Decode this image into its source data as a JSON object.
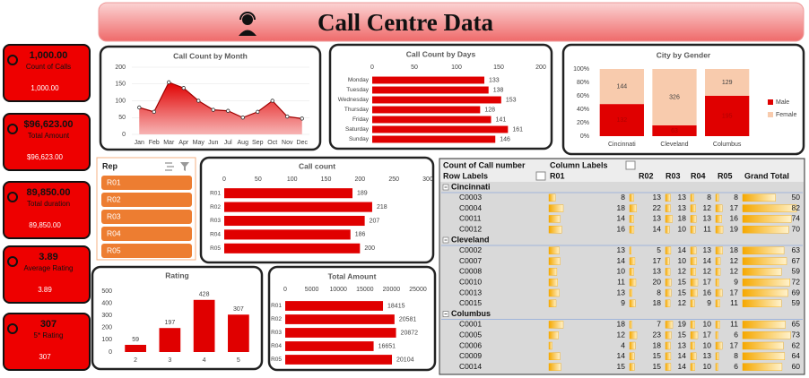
{
  "header": {
    "title": "Call Centre Data"
  },
  "kpis": [
    {
      "value": "1,000.00",
      "label": "Count of Calls"
    },
    {
      "value": "$96,623.00",
      "label": "Total Amount"
    },
    {
      "value": "89,850.00",
      "label": "Total duration"
    },
    {
      "value": "3.89",
      "label": "Average Rating"
    },
    {
      "value": "307",
      "label": "5* Rating"
    }
  ],
  "chart_data": [
    {
      "type": "area",
      "title": "Call Count by Month",
      "categories": [
        "Jan",
        "Feb",
        "Mar",
        "Apr",
        "May",
        "Jun",
        "Jul",
        "Aug",
        "Sep",
        "Oct",
        "Nov",
        "Dec"
      ],
      "values": [
        80,
        67,
        155,
        138,
        100,
        73,
        70,
        50,
        67,
        100,
        53,
        47
      ],
      "color": "#e00000",
      "ylim": [
        0,
        200
      ],
      "yticks": [
        0,
        50,
        100,
        150,
        200
      ],
      "grid": true
    },
    {
      "type": "bar",
      "orientation": "horizontal",
      "title": "Call Count by Days",
      "categories": [
        "Monday",
        "Tuesday",
        "Wednesday",
        "Thursday",
        "Friday",
        "Saturday",
        "Sunday"
      ],
      "values": [
        133,
        138,
        153,
        128,
        141,
        161,
        146
      ],
      "color": "#e00000",
      "xlim": [
        0,
        200
      ],
      "xticks": [
        0,
        50,
        100,
        150,
        200
      ],
      "grid": false
    },
    {
      "type": "bar",
      "stacked": "percent",
      "title": "City by Gender",
      "categories": [
        "Cincinnati",
        "Cleveland",
        "Columbus"
      ],
      "series": [
        {
          "name": "Male",
          "color": "#e00000",
          "values": [
            132,
            63,
            195
          ]
        },
        {
          "name": "Female",
          "color": "#f8cbad",
          "values": [
            144,
            326,
            129
          ]
        }
      ],
      "ylim": [
        0,
        100
      ],
      "yticks": [
        {
          "value": 0,
          "label": "0%"
        },
        {
          "value": 20,
          "label": "20%"
        },
        {
          "value": 40,
          "label": "40%"
        },
        {
          "value": 60,
          "label": "60%"
        },
        {
          "value": 80,
          "label": "80%"
        },
        {
          "value": 100,
          "label": "100%"
        }
      ],
      "legend": "right",
      "grid": false
    },
    {
      "type": "bar",
      "orientation": "horizontal",
      "title": "Call count",
      "categories": [
        "R01",
        "R02",
        "R03",
        "R04",
        "R05"
      ],
      "values": [
        189,
        218,
        207,
        186,
        200
      ],
      "color": "#e00000",
      "xlim": [
        0,
        300
      ],
      "xticks": [
        0,
        50,
        100,
        150,
        200,
        250,
        300
      ],
      "grid": false
    },
    {
      "type": "bar",
      "title": "Rating",
      "categories": [
        "2",
        "3",
        "4",
        "5"
      ],
      "values": [
        59,
        197,
        428,
        307
      ],
      "color": "#e00000",
      "ylim": [
        0,
        500
      ],
      "yticks": [
        0,
        100,
        200,
        300,
        400,
        500
      ],
      "grid": false
    },
    {
      "type": "bar",
      "orientation": "horizontal",
      "title": "Total Amount",
      "categories": [
        "R01",
        "R02",
        "R03",
        "R04",
        "R05"
      ],
      "values": [
        18415,
        20581,
        20872,
        16651,
        20104
      ],
      "color": "#e00000",
      "xlim": [
        0,
        25000
      ],
      "xticks": [
        0,
        5000,
        10000,
        15000,
        20000,
        25000
      ],
      "grid": false
    }
  ],
  "slicer": {
    "title": "Rep",
    "items": [
      "R01",
      "R02",
      "R03",
      "R04",
      "R05"
    ]
  },
  "pivot": {
    "corner": "Count of Call number",
    "column_labels": "Column Labels",
    "row_labels": "Row Labels",
    "columns": [
      "R01",
      "R02",
      "R03",
      "R04",
      "R05",
      "Grand Total"
    ],
    "groups": [
      {
        "name": "Cincinnati",
        "rows": [
          {
            "label": "C0003",
            "values": [
              8,
              13,
              13,
              8,
              8,
              50
            ]
          },
          {
            "label": "C0004",
            "values": [
              18,
              22,
              13,
              12,
              17,
              82
            ]
          },
          {
            "label": "C0011",
            "values": [
              14,
              13,
              18,
              13,
              16,
              74
            ]
          },
          {
            "label": "C0012",
            "values": [
              16,
              14,
              10,
              11,
              19,
              70
            ]
          }
        ]
      },
      {
        "name": "Cleveland",
        "rows": [
          {
            "label": "C0002",
            "values": [
              13,
              5,
              14,
              13,
              18,
              63
            ]
          },
          {
            "label": "C0007",
            "values": [
              14,
              17,
              10,
              14,
              12,
              67
            ]
          },
          {
            "label": "C0008",
            "values": [
              10,
              13,
              12,
              12,
              12,
              59
            ]
          },
          {
            "label": "C0010",
            "values": [
              11,
              20,
              15,
              17,
              9,
              72
            ]
          },
          {
            "label": "C0013",
            "values": [
              13,
              8,
              15,
              16,
              17,
              69
            ]
          },
          {
            "label": "C0015",
            "values": [
              9,
              18,
              12,
              9,
              11,
              59
            ]
          }
        ]
      },
      {
        "name": "Columbus",
        "rows": [
          {
            "label": "C0001",
            "values": [
              18,
              7,
              19,
              10,
              11,
              65
            ]
          },
          {
            "label": "C0005",
            "values": [
              12,
              23,
              15,
              17,
              6,
              73
            ]
          },
          {
            "label": "C0006",
            "values": [
              4,
              18,
              13,
              10,
              17,
              62
            ]
          },
          {
            "label": "C0009",
            "values": [
              14,
              15,
              14,
              13,
              8,
              64
            ]
          },
          {
            "label": "C0014",
            "values": [
              15,
              15,
              14,
              10,
              6,
              60
            ]
          }
        ]
      }
    ]
  }
}
